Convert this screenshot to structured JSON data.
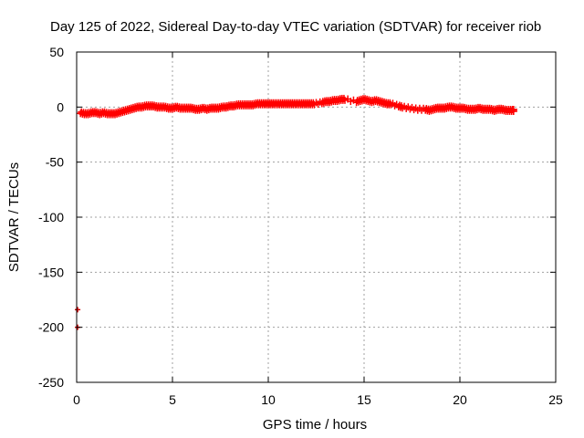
{
  "chart_data": {
    "type": "scatter",
    "title": "Day 125 of 2022, Sidereal Day-to-day VTEC variation (SDTVAR) for receiver riob",
    "xlabel": "GPS time / hours",
    "ylabel": "SDTVAR / TECUs",
    "xlim": [
      0,
      25
    ],
    "ylim": [
      -250,
      50
    ],
    "xticks": [
      0,
      5,
      10,
      15,
      20,
      25
    ],
    "yticks": [
      -250,
      -200,
      -150,
      -100,
      -50,
      0,
      50
    ],
    "xtick_labels": [
      "0",
      "5",
      "10",
      "15",
      "20",
      "25"
    ],
    "ytick_labels": [
      "-250",
      "-200",
      "-150",
      "-100",
      "-50",
      "0",
      "50"
    ],
    "grid": true,
    "legend": "none",
    "marker": "plus",
    "colors": {
      "series": "#ff0000",
      "outlier": "#cc0000",
      "grid": "#a0a0a0",
      "axis": "#000000"
    },
    "series": [
      {
        "name": "SDTVAR",
        "x": [
          0.2,
          0.4,
          0.6,
          0.8,
          1.0,
          1.2,
          1.4,
          1.6,
          1.8,
          2.0,
          2.2,
          2.4,
          2.6,
          2.8,
          3.0,
          3.2,
          3.4,
          3.6,
          3.8,
          4.0,
          4.2,
          4.4,
          4.6,
          4.8,
          5.0,
          5.2,
          5.4,
          5.6,
          5.8,
          6.0,
          6.2,
          6.4,
          6.6,
          6.8,
          7.0,
          7.2,
          7.4,
          7.6,
          7.8,
          8.0,
          8.2,
          8.4,
          8.6,
          8.8,
          9.0,
          9.2,
          9.4,
          9.6,
          9.8,
          10.0,
          10.2,
          10.4,
          10.6,
          10.8,
          11.0,
          11.2,
          11.4,
          11.6,
          11.8,
          12.0,
          12.2,
          12.4,
          12.8,
          13.0,
          13.2,
          13.4,
          13.6,
          13.8,
          14.0,
          14.6,
          14.8,
          15.0,
          15.2,
          15.4,
          15.6,
          15.8,
          16.0,
          16.2,
          16.4,
          16.8,
          17.0,
          17.4,
          17.8,
          18.2,
          18.4,
          18.6,
          18.8,
          19.0,
          19.2,
          19.4,
          19.6,
          19.8,
          20.0,
          20.2,
          20.4,
          20.6,
          20.8,
          21.0,
          21.2,
          21.4,
          21.6,
          21.8,
          22.0,
          22.2,
          22.4,
          22.6,
          22.8
        ],
        "y": [
          -5,
          -6,
          -6,
          -5,
          -5,
          -6,
          -5,
          -6,
          -6,
          -6,
          -5,
          -4,
          -3,
          -2,
          -1,
          0,
          0,
          1,
          1,
          1,
          0,
          0,
          0,
          -1,
          -1,
          0,
          -1,
          -1,
          -1,
          -1,
          -2,
          -2,
          -1,
          -2,
          -1,
          -1,
          -1,
          0,
          0,
          1,
          1,
          2,
          2,
          2,
          2,
          2,
          3,
          3,
          3,
          3,
          3,
          3,
          3,
          3,
          3,
          3,
          3,
          3,
          3,
          3,
          3,
          3,
          4,
          5,
          5,
          6,
          6,
          7,
          7,
          5,
          6,
          7,
          6,
          5,
          6,
          5,
          4,
          3,
          3,
          1,
          0,
          -1,
          -2,
          -2,
          -3,
          -2,
          -1,
          -1,
          -1,
          0,
          0,
          -1,
          -1,
          -1,
          -2,
          -2,
          -2,
          -1,
          -2,
          -2,
          -2,
          -3,
          -2,
          -2,
          -3,
          -3,
          -3
        ]
      },
      {
        "name": "outliers",
        "x": [
          0.05,
          0.05
        ],
        "y": [
          -184,
          -200
        ]
      }
    ]
  }
}
